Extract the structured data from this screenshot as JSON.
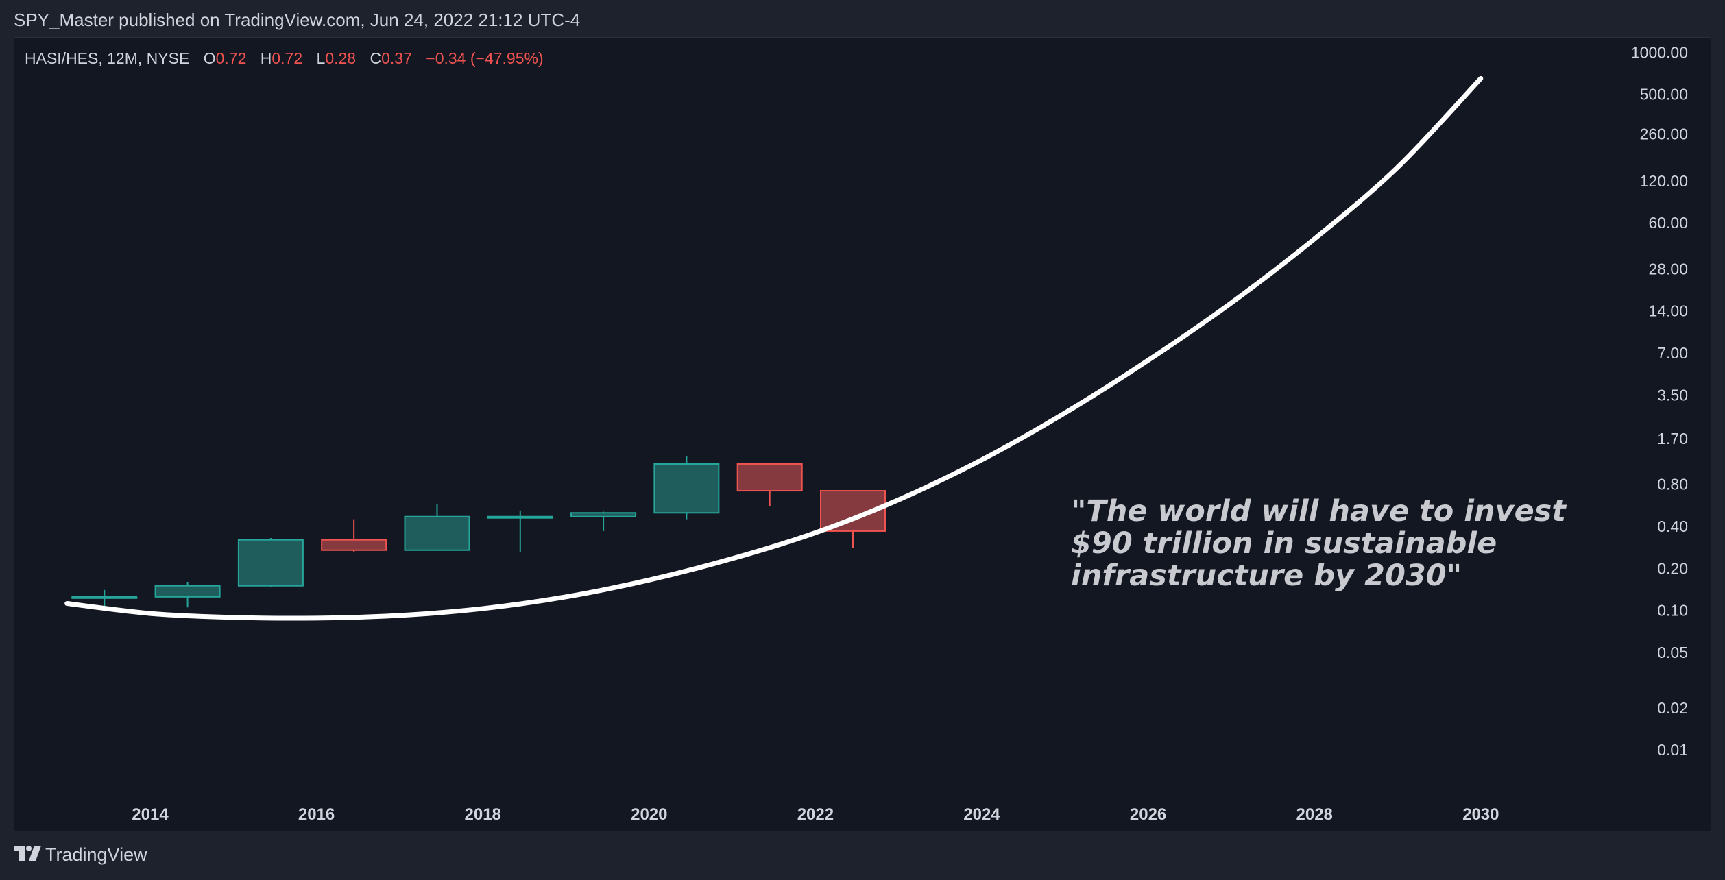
{
  "header": {
    "published": "SPY_Master published on TradingView.com, Jun 24, 2022 21:12 UTC-4"
  },
  "legend": {
    "symbol": "HASI/HES, 12M, NYSE",
    "o_label": "O",
    "o_value": "0.72",
    "h_label": "H",
    "h_value": "0.72",
    "l_label": "L",
    "l_value": "0.28",
    "c_label": "C",
    "c_value": "0.37",
    "change": "−0.34 (−47.95%)"
  },
  "footer": {
    "brand": "TradingView",
    "logo_icon": "tradingview-logo-icon"
  },
  "colors": {
    "up": "#26a69a",
    "up_fill": "#1e5d5c",
    "down": "#f05350",
    "down_fill": "#843a3e",
    "curve": "#ffffff",
    "annotation": "#c8cad0",
    "axis_text": "#d1d4dc",
    "panel": "#131722",
    "background": "#1e222d"
  },
  "chart_data": {
    "type": "candlestick",
    "y_scale": "log",
    "y_ticks": [
      "1000.00",
      "500.00",
      "260.00",
      "120.00",
      "60.00",
      "28.00",
      "14.00",
      "7.00",
      "3.50",
      "1.70",
      "0.80",
      "0.40",
      "0.20",
      "0.10",
      "0.05",
      "0.02",
      "0.01"
    ],
    "x_ticks": [
      "2014",
      "2016",
      "2018",
      "2020",
      "2022",
      "2024",
      "2026",
      "2028",
      "2030"
    ],
    "candles": [
      {
        "year": 2013,
        "open": 0.125,
        "high": 0.14,
        "low": 0.1,
        "close": 0.125
      },
      {
        "year": 2014,
        "open": 0.125,
        "high": 0.16,
        "low": 0.105,
        "close": 0.15
      },
      {
        "year": 2015,
        "open": 0.15,
        "high": 0.33,
        "low": 0.148,
        "close": 0.32
      },
      {
        "year": 2016,
        "open": 0.32,
        "high": 0.45,
        "low": 0.26,
        "close": 0.27
      },
      {
        "year": 2017,
        "open": 0.27,
        "high": 0.58,
        "low": 0.27,
        "close": 0.47
      },
      {
        "year": 2018,
        "open": 0.47,
        "high": 0.52,
        "low": 0.26,
        "close": 0.47
      },
      {
        "year": 2019,
        "open": 0.47,
        "high": 0.51,
        "low": 0.37,
        "close": 0.5
      },
      {
        "year": 2020,
        "open": 0.5,
        "high": 1.28,
        "low": 0.45,
        "close": 1.12
      },
      {
        "year": 2021,
        "open": 1.12,
        "high": 1.12,
        "low": 0.56,
        "close": 0.72
      },
      {
        "year": 2022,
        "open": 0.72,
        "high": 0.72,
        "low": 0.28,
        "close": 0.37
      }
    ],
    "curve": [
      {
        "year": 2013,
        "value": 0.112
      },
      {
        "year": 2014,
        "value": 0.095
      },
      {
        "year": 2015,
        "value": 0.089
      },
      {
        "year": 2016,
        "value": 0.088
      },
      {
        "year": 2017,
        "value": 0.092
      },
      {
        "year": 2018,
        "value": 0.103
      },
      {
        "year": 2019,
        "value": 0.125
      },
      {
        "year": 2020,
        "value": 0.165
      },
      {
        "year": 2021,
        "value": 0.235
      },
      {
        "year": 2022,
        "value": 0.36
      },
      {
        "year": 2023,
        "value": 0.62
      },
      {
        "year": 2024,
        "value": 1.2
      },
      {
        "year": 2025,
        "value": 2.6
      },
      {
        "year": 2026,
        "value": 6.2
      },
      {
        "year": 2027,
        "value": 16
      },
      {
        "year": 2028,
        "value": 46
      },
      {
        "year": 2029,
        "value": 150
      },
      {
        "year": 2030,
        "value": 650
      }
    ],
    "annotation": [
      "\"The world will have to invest",
      "$90 trillion in sustainable",
      "infrastructure by 2030\""
    ]
  }
}
